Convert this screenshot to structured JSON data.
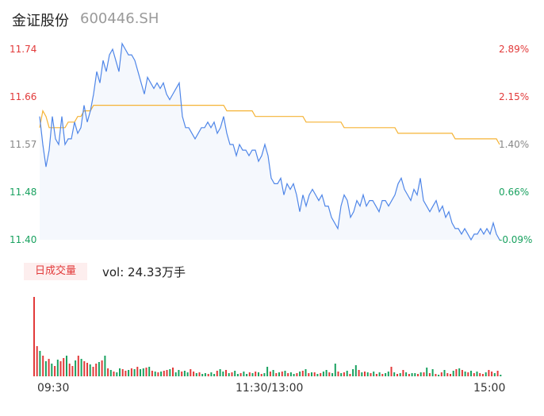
{
  "header": {
    "name": "金证股份",
    "code": "600446.SH"
  },
  "price_axis": {
    "left_labels": [
      "11.74",
      "11.66",
      "11.57",
      "11.48",
      "11.40"
    ],
    "right_labels": [
      "2.89%",
      "2.15%",
      "1.40%",
      "0.66%",
      "-0.09%"
    ],
    "colors": [
      "#e23a3a",
      "#e23a3a",
      "#888888",
      "#1aa260",
      "#1aa260"
    ]
  },
  "volume": {
    "badge": "日成交量",
    "label": "vol: 24.33万手"
  },
  "time_axis": {
    "labels": [
      "09:30",
      "11:30/13:00",
      "15:00"
    ]
  },
  "colors": {
    "price_line": "#4f86e8",
    "avg_line": "#f5b335",
    "up": "#e23a3a",
    "down": "#1aa260"
  },
  "chart_data": [
    {
      "type": "line",
      "title": "",
      "xlabel": "",
      "ylabel": "",
      "ylim": [
        11.4,
        11.74
      ],
      "x_ticks": [
        "09:30",
        "11:30/13:00",
        "15:00"
      ],
      "series": [
        {
          "key": "price",
          "values": [
            11.62,
            11.57,
            11.53,
            11.56,
            11.62,
            11.58,
            11.57,
            11.62,
            11.57,
            11.58,
            11.58,
            11.61,
            11.59,
            11.6,
            11.64,
            11.61,
            11.63,
            11.66,
            11.7,
            11.68,
            11.72,
            11.7,
            11.73,
            11.74,
            11.72,
            11.7,
            11.75,
            11.74,
            11.73,
            11.73,
            11.72,
            11.7,
            11.68,
            11.66,
            11.69,
            11.68,
            11.67,
            11.68,
            11.67,
            11.68,
            11.66,
            11.65,
            11.66,
            11.67,
            11.68,
            11.62,
            11.6,
            11.6,
            11.59,
            11.58,
            11.59,
            11.6,
            11.6,
            11.61,
            11.6,
            11.61,
            11.59,
            11.6,
            11.62,
            11.59,
            11.57,
            11.57,
            11.55,
            11.57,
            11.56,
            11.56,
            11.55,
            11.56,
            11.56,
            11.54,
            11.55,
            11.57,
            11.55,
            11.51,
            11.5,
            11.5,
            11.51,
            11.48,
            11.5,
            11.49,
            11.5,
            11.48,
            11.45,
            11.48,
            11.46,
            11.48,
            11.49,
            11.48,
            11.47,
            11.48,
            11.46,
            11.46,
            11.44,
            11.43,
            11.42,
            11.46,
            11.48,
            11.47,
            11.44,
            11.45,
            11.47,
            11.46,
            11.48,
            11.46,
            11.47,
            11.47,
            11.46,
            11.45,
            11.47,
            11.47,
            11.46,
            11.47,
            11.48,
            11.5,
            11.51,
            11.49,
            11.48,
            11.47,
            11.49,
            11.48,
            11.51,
            11.47,
            11.46,
            11.45,
            11.46,
            11.47,
            11.45,
            11.46,
            11.44,
            11.45,
            11.43,
            11.42,
            11.42,
            11.41,
            11.42,
            11.41,
            11.4,
            11.41,
            11.41,
            11.42,
            11.41,
            11.42,
            11.41,
            11.43,
            11.41,
            11.4
          ]
        },
        {
          "key": "average",
          "values": [
            11.6,
            11.63,
            11.62,
            11.6,
            11.6,
            11.6,
            11.6,
            11.6,
            11.6,
            11.61,
            11.61,
            11.61,
            11.62,
            11.62,
            11.63,
            11.63,
            11.63,
            11.64,
            11.64,
            11.64,
            11.64,
            11.64,
            11.64,
            11.64,
            11.64,
            11.64,
            11.64,
            11.64,
            11.64,
            11.64,
            11.64,
            11.64,
            11.64,
            11.64,
            11.64,
            11.64,
            11.64,
            11.64,
            11.64,
            11.64,
            11.64,
            11.64,
            11.64,
            11.64,
            11.64,
            11.64,
            11.64,
            11.64,
            11.64,
            11.64,
            11.64,
            11.64,
            11.64,
            11.64,
            11.64,
            11.64,
            11.64,
            11.64,
            11.64,
            11.63,
            11.63,
            11.63,
            11.63,
            11.63,
            11.63,
            11.63,
            11.63,
            11.63,
            11.62,
            11.62,
            11.62,
            11.62,
            11.62,
            11.62,
            11.62,
            11.62,
            11.62,
            11.62,
            11.62,
            11.62,
            11.62,
            11.62,
            11.62,
            11.62,
            11.61,
            11.61,
            11.61,
            11.61,
            11.61,
            11.61,
            11.61,
            11.61,
            11.61,
            11.61,
            11.61,
            11.61,
            11.6,
            11.6,
            11.6,
            11.6,
            11.6,
            11.6,
            11.6,
            11.6,
            11.6,
            11.6,
            11.6,
            11.6,
            11.6,
            11.6,
            11.6,
            11.6,
            11.6,
            11.59,
            11.59,
            11.59,
            11.59,
            11.59,
            11.59,
            11.59,
            11.59,
            11.59,
            11.59,
            11.59,
            11.59,
            11.59,
            11.59,
            11.59,
            11.59,
            11.59,
            11.59,
            11.58,
            11.58,
            11.58,
            11.58,
            11.58,
            11.58,
            11.58,
            11.58,
            11.58,
            11.58,
            11.58,
            11.58,
            11.58,
            11.58,
            11.57
          ]
        }
      ]
    },
    {
      "type": "bar",
      "title": "",
      "xlabel": "",
      "ylabel": "",
      "values": [
        100,
        38,
        32,
        26,
        19,
        22,
        16,
        13,
        21,
        19,
        23,
        26,
        16,
        13,
        20,
        26,
        22,
        19,
        17,
        15,
        12,
        16,
        18,
        20,
        26,
        10,
        8,
        6,
        5,
        10,
        9,
        7,
        8,
        10,
        9,
        12,
        9,
        10,
        11,
        12,
        7,
        6,
        5,
        6,
        7,
        8,
        9,
        11,
        5,
        8,
        6,
        7,
        5,
        9,
        6,
        4,
        5,
        3,
        4,
        3,
        5,
        3,
        7,
        9,
        6,
        8,
        4,
        5,
        7,
        3,
        4,
        6,
        3,
        5,
        4,
        6,
        5,
        3,
        4,
        12,
        6,
        8,
        4,
        5,
        6,
        7,
        4,
        5,
        3,
        4,
        6,
        7,
        9,
        4,
        5,
        5,
        3,
        4,
        6,
        8,
        5,
        4,
        16,
        6,
        4,
        5,
        7,
        3,
        9,
        14,
        8,
        5,
        6,
        5,
        4,
        6,
        3,
        5,
        3,
        4,
        6,
        12,
        5,
        3,
        4,
        8,
        5,
        3,
        4,
        4,
        3,
        5,
        5,
        11,
        4,
        9,
        3,
        2,
        5,
        8,
        4,
        3,
        7,
        9,
        10,
        8,
        6,
        5,
        7,
        4,
        6,
        4,
        3,
        5,
        8,
        6,
        4,
        7,
        2
      ],
      "directions": [
        "up",
        "up",
        "down",
        "up",
        "down",
        "up",
        "down",
        "up",
        "down",
        "up",
        "up",
        "down",
        "up",
        "up",
        "down",
        "up",
        "down",
        "up",
        "up",
        "down",
        "up",
        "up",
        "down",
        "up",
        "down",
        "up",
        "down",
        "up",
        "down",
        "down",
        "up",
        "up",
        "down",
        "up",
        "down",
        "up",
        "down",
        "down",
        "up",
        "down",
        "up",
        "down",
        "up",
        "down",
        "up",
        "up",
        "down",
        "up",
        "down",
        "down",
        "up",
        "down",
        "down",
        "up",
        "up",
        "down",
        "up",
        "down",
        "down",
        "up",
        "down",
        "down",
        "up",
        "down",
        "down",
        "up",
        "down",
        "up",
        "down",
        "down",
        "up",
        "down",
        "down",
        "up",
        "down",
        "up",
        "down",
        "up",
        "down",
        "down",
        "up",
        "down",
        "up",
        "down",
        "up",
        "down",
        "up",
        "down",
        "down",
        "up",
        "down",
        "up",
        "down",
        "up",
        "down",
        "up",
        "down",
        "up",
        "down",
        "down",
        "up",
        "down",
        "down",
        "up",
        "down",
        "up",
        "down",
        "up",
        "down",
        "down",
        "up",
        "down",
        "up",
        "down",
        "up",
        "down",
        "up",
        "down",
        "up",
        "down",
        "down",
        "up",
        "down",
        "up",
        "down",
        "up",
        "down",
        "up",
        "down",
        "down",
        "up",
        "down",
        "up",
        "down",
        "up",
        "down",
        "up",
        "down",
        "up",
        "down",
        "up",
        "up",
        "down",
        "up",
        "down",
        "up",
        "down",
        "up",
        "down",
        "up",
        "down",
        "up",
        "up",
        "down",
        "up",
        "up",
        "down",
        "up",
        "down",
        "up"
      ]
    }
  ]
}
